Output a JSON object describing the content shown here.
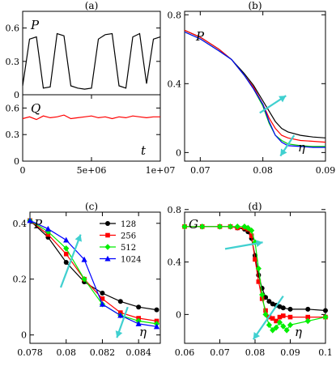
{
  "chart_data": [
    {
      "type": "line",
      "panel_label": "(a)",
      "subplots": [
        {
          "symbol": "P",
          "ylim": [
            0,
            0.75
          ],
          "yticks": [
            "0",
            "0.3",
            "0.6"
          ],
          "series": [
            {
              "color": "#000000",
              "x": [
                0,
                500000,
                1000000,
                1500000,
                2000000,
                2500000,
                3000000,
                3500000,
                4000000,
                4500000,
                5000000,
                5500000,
                6000000,
                6500000,
                7000000,
                7500000,
                8000000,
                8500000,
                9000000,
                9500000,
                10000000
              ],
              "y": [
                0.08,
                0.5,
                0.52,
                0.06,
                0.07,
                0.55,
                0.53,
                0.08,
                0.06,
                0.05,
                0.06,
                0.5,
                0.54,
                0.55,
                0.08,
                0.06,
                0.52,
                0.55,
                0.1,
                0.5,
                0.52
              ]
            }
          ]
        },
        {
          "symbol": "Q",
          "ylim": [
            0,
            0.75
          ],
          "yticks": [
            "0",
            "0.3",
            "0.6"
          ],
          "series": [
            {
              "color": "#ff0000",
              "x": [
                0,
                500000,
                1000000,
                1500000,
                2000000,
                2500000,
                3000000,
                3500000,
                4000000,
                4500000,
                5000000,
                5500000,
                6000000,
                6500000,
                7000000,
                7500000,
                8000000,
                8500000,
                9000000,
                9500000,
                10000000
              ],
              "y": [
                0.48,
                0.5,
                0.47,
                0.51,
                0.49,
                0.5,
                0.52,
                0.48,
                0.49,
                0.5,
                0.51,
                0.49,
                0.5,
                0.48,
                0.5,
                0.49,
                0.51,
                0.5,
                0.49,
                0.5,
                0.5
              ]
            }
          ]
        }
      ],
      "xlabel": "t",
      "xlim": [
        0,
        10000000
      ],
      "xticks": [
        "0",
        "5e+06",
        "1e+07"
      ]
    },
    {
      "type": "line",
      "panel_label": "(b)",
      "symbol": "P",
      "xlabel": "η",
      "xlim": [
        0.0675,
        0.09
      ],
      "ylim": [
        -0.05,
        0.82
      ],
      "xticks": [
        "0.07",
        "0.08",
        "0.09"
      ],
      "yticks": [
        "0",
        "0.4",
        "0.8"
      ],
      "series": [
        {
          "color": "#000000",
          "x": [
            0.0675,
            0.07,
            0.073,
            0.075,
            0.077,
            0.0785,
            0.08,
            0.081,
            0.082,
            0.083,
            0.084,
            0.086,
            0.088,
            0.09
          ],
          "y": [
            0.71,
            0.67,
            0.6,
            0.54,
            0.46,
            0.39,
            0.3,
            0.24,
            0.18,
            0.14,
            0.12,
            0.1,
            0.09,
            0.085
          ]
        },
        {
          "color": "#ff0000",
          "x": [
            0.0675,
            0.07,
            0.073,
            0.075,
            0.077,
            0.0785,
            0.08,
            0.081,
            0.082,
            0.083,
            0.084,
            0.086,
            0.088,
            0.09
          ],
          "y": [
            0.71,
            0.67,
            0.6,
            0.54,
            0.45,
            0.38,
            0.28,
            0.2,
            0.14,
            0.1,
            0.085,
            0.07,
            0.065,
            0.06
          ]
        },
        {
          "color": "#00cc00",
          "x": [
            0.0675,
            0.07,
            0.073,
            0.075,
            0.077,
            0.0785,
            0.08,
            0.081,
            0.082,
            0.083,
            0.084,
            0.086,
            0.088,
            0.09
          ],
          "y": [
            0.7,
            0.66,
            0.59,
            0.54,
            0.45,
            0.37,
            0.27,
            0.17,
            0.1,
            0.07,
            0.05,
            0.04,
            0.035,
            0.035
          ]
        },
        {
          "color": "#0000ff",
          "x": [
            0.0675,
            0.07,
            0.073,
            0.075,
            0.077,
            0.0785,
            0.08,
            0.081,
            0.082,
            0.083,
            0.084,
            0.086,
            0.088,
            0.09
          ],
          "y": [
            0.7,
            0.66,
            0.59,
            0.54,
            0.45,
            0.37,
            0.28,
            0.18,
            0.1,
            0.06,
            0.04,
            0.035,
            0.03,
            0.03
          ]
        }
      ]
    },
    {
      "type": "line",
      "panel_label": "(c)",
      "symbol": "P",
      "xlabel": "η",
      "xlim": [
        0.078,
        0.0852
      ],
      "ylim": [
        -0.03,
        0.44
      ],
      "xticks": [
        "0.078",
        "0.08",
        "0.082",
        "0.084"
      ],
      "yticks": [
        "0",
        "0.2",
        "0.4"
      ],
      "legend_position": "top-right",
      "series": [
        {
          "name": "128",
          "color": "#000000",
          "marker": "circle",
          "x": [
            0.078,
            0.079,
            0.08,
            0.081,
            0.082,
            0.083,
            0.084,
            0.085
          ],
          "y": [
            0.41,
            0.35,
            0.26,
            0.19,
            0.15,
            0.12,
            0.1,
            0.09
          ]
        },
        {
          "name": "256",
          "color": "#ff0000",
          "marker": "square",
          "x": [
            0.078,
            0.079,
            0.08,
            0.081,
            0.082,
            0.083,
            0.084,
            0.085
          ],
          "y": [
            0.41,
            0.36,
            0.29,
            0.2,
            0.13,
            0.08,
            0.06,
            0.05
          ]
        },
        {
          "name": "512",
          "color": "#00ee00",
          "marker": "diamond",
          "x": [
            0.078,
            0.079,
            0.08,
            0.081,
            0.082,
            0.083,
            0.084,
            0.085
          ],
          "y": [
            0.41,
            0.37,
            0.31,
            0.2,
            0.11,
            0.07,
            0.05,
            0.04
          ]
        },
        {
          "name": "1024",
          "color": "#0000ff",
          "marker": "triangle",
          "x": [
            0.078,
            0.079,
            0.08,
            0.081,
            0.082,
            0.083,
            0.084,
            0.085
          ],
          "y": [
            0.41,
            0.38,
            0.34,
            0.27,
            0.11,
            0.07,
            0.04,
            0.03
          ]
        }
      ]
    },
    {
      "type": "line",
      "panel_label": "(d)",
      "symbol": "G",
      "xlabel": "η",
      "xlim": [
        0.06,
        0.1
      ],
      "ylim": [
        -0.22,
        0.78
      ],
      "xticks": [
        "0.06",
        "0.07",
        "0.08",
        "0.09",
        "0.1"
      ],
      "yticks": [
        "0",
        "0.4",
        "0.8"
      ],
      "series": [
        {
          "color": "#000000",
          "marker": "circle",
          "x": [
            0.06,
            0.065,
            0.07,
            0.073,
            0.075,
            0.077,
            0.078,
            0.079,
            0.08,
            0.081,
            0.082,
            0.083,
            0.084,
            0.085,
            0.086,
            0.087,
            0.088,
            0.09,
            0.095,
            0.1
          ],
          "y": [
            0.67,
            0.67,
            0.67,
            0.67,
            0.66,
            0.65,
            0.63,
            0.58,
            0.45,
            0.3,
            0.2,
            0.13,
            0.1,
            0.08,
            0.07,
            0.06,
            0.05,
            0.04,
            0.04,
            0.03
          ]
        },
        {
          "color": "#ff0000",
          "marker": "square",
          "x": [
            0.06,
            0.065,
            0.07,
            0.073,
            0.075,
            0.077,
            0.078,
            0.079,
            0.08,
            0.081,
            0.082,
            0.083,
            0.084,
            0.085,
            0.086,
            0.087,
            0.088,
            0.09,
            0.095,
            0.1
          ],
          "y": [
            0.67,
            0.67,
            0.67,
            0.67,
            0.66,
            0.66,
            0.65,
            0.6,
            0.42,
            0.25,
            0.12,
            0.03,
            -0.02,
            -0.03,
            -0.05,
            -0.02,
            -0.01,
            -0.02,
            -0.02,
            -0.02
          ]
        },
        {
          "color": "#00ee00",
          "marker": "diamond",
          "x": [
            0.06,
            0.065,
            0.07,
            0.073,
            0.075,
            0.077,
            0.078,
            0.079,
            0.08,
            0.081,
            0.082,
            0.083,
            0.084,
            0.085,
            0.086,
            0.087,
            0.088,
            0.089,
            0.09,
            0.095,
            0.1
          ],
          "y": [
            0.67,
            0.67,
            0.67,
            0.67,
            0.67,
            0.67,
            0.66,
            0.64,
            0.55,
            0.35,
            0.15,
            0.0,
            -0.08,
            -0.12,
            -0.1,
            -0.06,
            -0.09,
            -0.12,
            -0.08,
            -0.05,
            -0.02
          ]
        }
      ]
    }
  ]
}
